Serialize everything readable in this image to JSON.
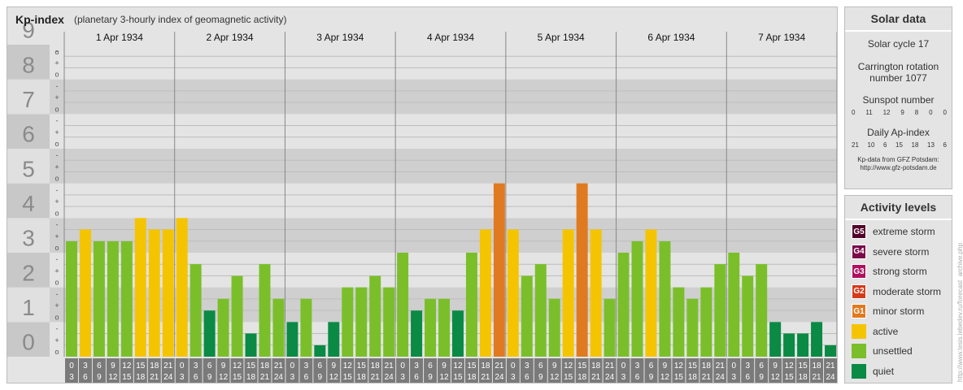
{
  "header": {
    "title": "Kp-index",
    "subtitle": "(planetary 3-hourly index of geomagnetic activity)"
  },
  "chart_data": {
    "type": "bar",
    "ylim": [
      0,
      9
    ],
    "y_ticks": [
      "0",
      "1",
      "2",
      "3",
      "4",
      "5",
      "6",
      "7",
      "8",
      "9"
    ],
    "minor_tick_symbols": [
      "o",
      "+",
      "-"
    ],
    "days": [
      "1 Apr 1934",
      "2 Apr 1934",
      "3 Apr 1934",
      "4 Apr 1934",
      "5 Apr 1934",
      "6 Apr 1934",
      "7 Apr 1934"
    ],
    "interval_start_hours": [
      "0",
      "3",
      "6",
      "9",
      "12",
      "15",
      "18",
      "21"
    ],
    "interval_end_hours": [
      "3",
      "6",
      "9",
      "12",
      "15",
      "18",
      "21",
      "24"
    ],
    "values": [
      3.33,
      3.67,
      3.33,
      3.33,
      3.33,
      4.0,
      3.67,
      3.67,
      4.0,
      2.67,
      1.33,
      1.67,
      2.33,
      0.67,
      2.67,
      1.67,
      1.0,
      1.67,
      0.33,
      1.0,
      2.0,
      2.0,
      2.33,
      2.0,
      3.0,
      1.33,
      1.67,
      1.67,
      1.33,
      3.0,
      3.67,
      5.0,
      3.67,
      2.33,
      2.67,
      1.67,
      3.67,
      5.0,
      3.67,
      1.67,
      3.0,
      3.33,
      3.67,
      3.33,
      2.0,
      1.67,
      2.0,
      2.67,
      3.0,
      2.33,
      2.67,
      1.0,
      0.67,
      0.67,
      1.0,
      0.33
    ],
    "grid": true
  },
  "solar": {
    "title": "Solar data",
    "cycle": "Solar cycle 17",
    "carrington_line1": "Carrington rotation",
    "carrington_line2": "number 1077",
    "sunspot_label": "Sunspot number",
    "sunspot_values": [
      "0",
      "11",
      "12",
      "9",
      "8",
      "0",
      "0"
    ],
    "ap_label": "Daily Ap-index",
    "ap_values": [
      "21",
      "10",
      "6",
      "15",
      "18",
      "13",
      "6"
    ],
    "source_line1": "Kp-data from GFZ Potsdam:",
    "source_line2": "http://www.gfz-potsdam.de"
  },
  "activity": {
    "title": "Activity levels",
    "levels": [
      {
        "code": "G5",
        "label": "extreme storm",
        "color": "#52002a"
      },
      {
        "code": "G4",
        "label": "severe storm",
        "color": "#7a0a4a"
      },
      {
        "code": "G3",
        "label": "strong storm",
        "color": "#b01060"
      },
      {
        "code": "G2",
        "label": "moderate storm",
        "color": "#d43b1a"
      },
      {
        "code": "G1",
        "label": "minor storm",
        "color": "#e07a20"
      },
      {
        "code": "",
        "label": "active",
        "color": "#f5c400"
      },
      {
        "code": "",
        "label": "unsettled",
        "color": "#7abf2a"
      },
      {
        "code": "",
        "label": "quiet",
        "color": "#0a8a44"
      }
    ]
  },
  "colors": {
    "quiet": "#0a8a44",
    "unsettled": "#7abf2a",
    "active": "#f5c400",
    "minor_storm": "#e07a20"
  },
  "watermark": "http://www.tesis.lebedev.ru/forecast_archive.php"
}
